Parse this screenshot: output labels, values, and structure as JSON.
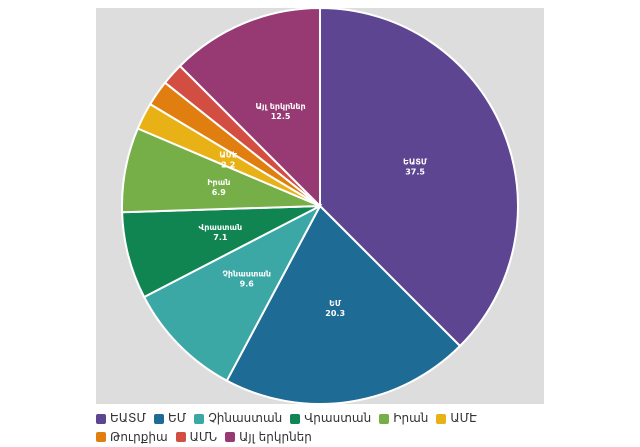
{
  "chart_data": {
    "type": "pie",
    "title": "",
    "slices": [
      {
        "name": "ԵԱՏՄ",
        "value": 37.5,
        "color": "#5e4591",
        "show_label": true
      },
      {
        "name": "ԵՄ",
        "value": 20.3,
        "color": "#1e6b95",
        "show_label": true
      },
      {
        "name": "Չինաստան",
        "value": 9.6,
        "color": "#3ba8a5",
        "show_label": true
      },
      {
        "name": "Վրաստան",
        "value": 7.1,
        "color": "#118551",
        "show_label": true
      },
      {
        "name": "Իրան",
        "value": 6.9,
        "color": "#76ae48",
        "show_label": true
      },
      {
        "name": "ԱՄԷ",
        "value": 2.2,
        "color": "#e8b115",
        "show_label": true
      },
      {
        "name": "Թուրքիա",
        "value": 2.1,
        "color": "#e07f10",
        "show_label": false
      },
      {
        "name": "ԱՄՆ",
        "value": 1.8,
        "color": "#d24e42",
        "show_label": false
      },
      {
        "name": "Այլ երկրներ",
        "value": 12.5,
        "color": "#973a73",
        "show_label": true
      }
    ],
    "legend_position": "bottom"
  }
}
